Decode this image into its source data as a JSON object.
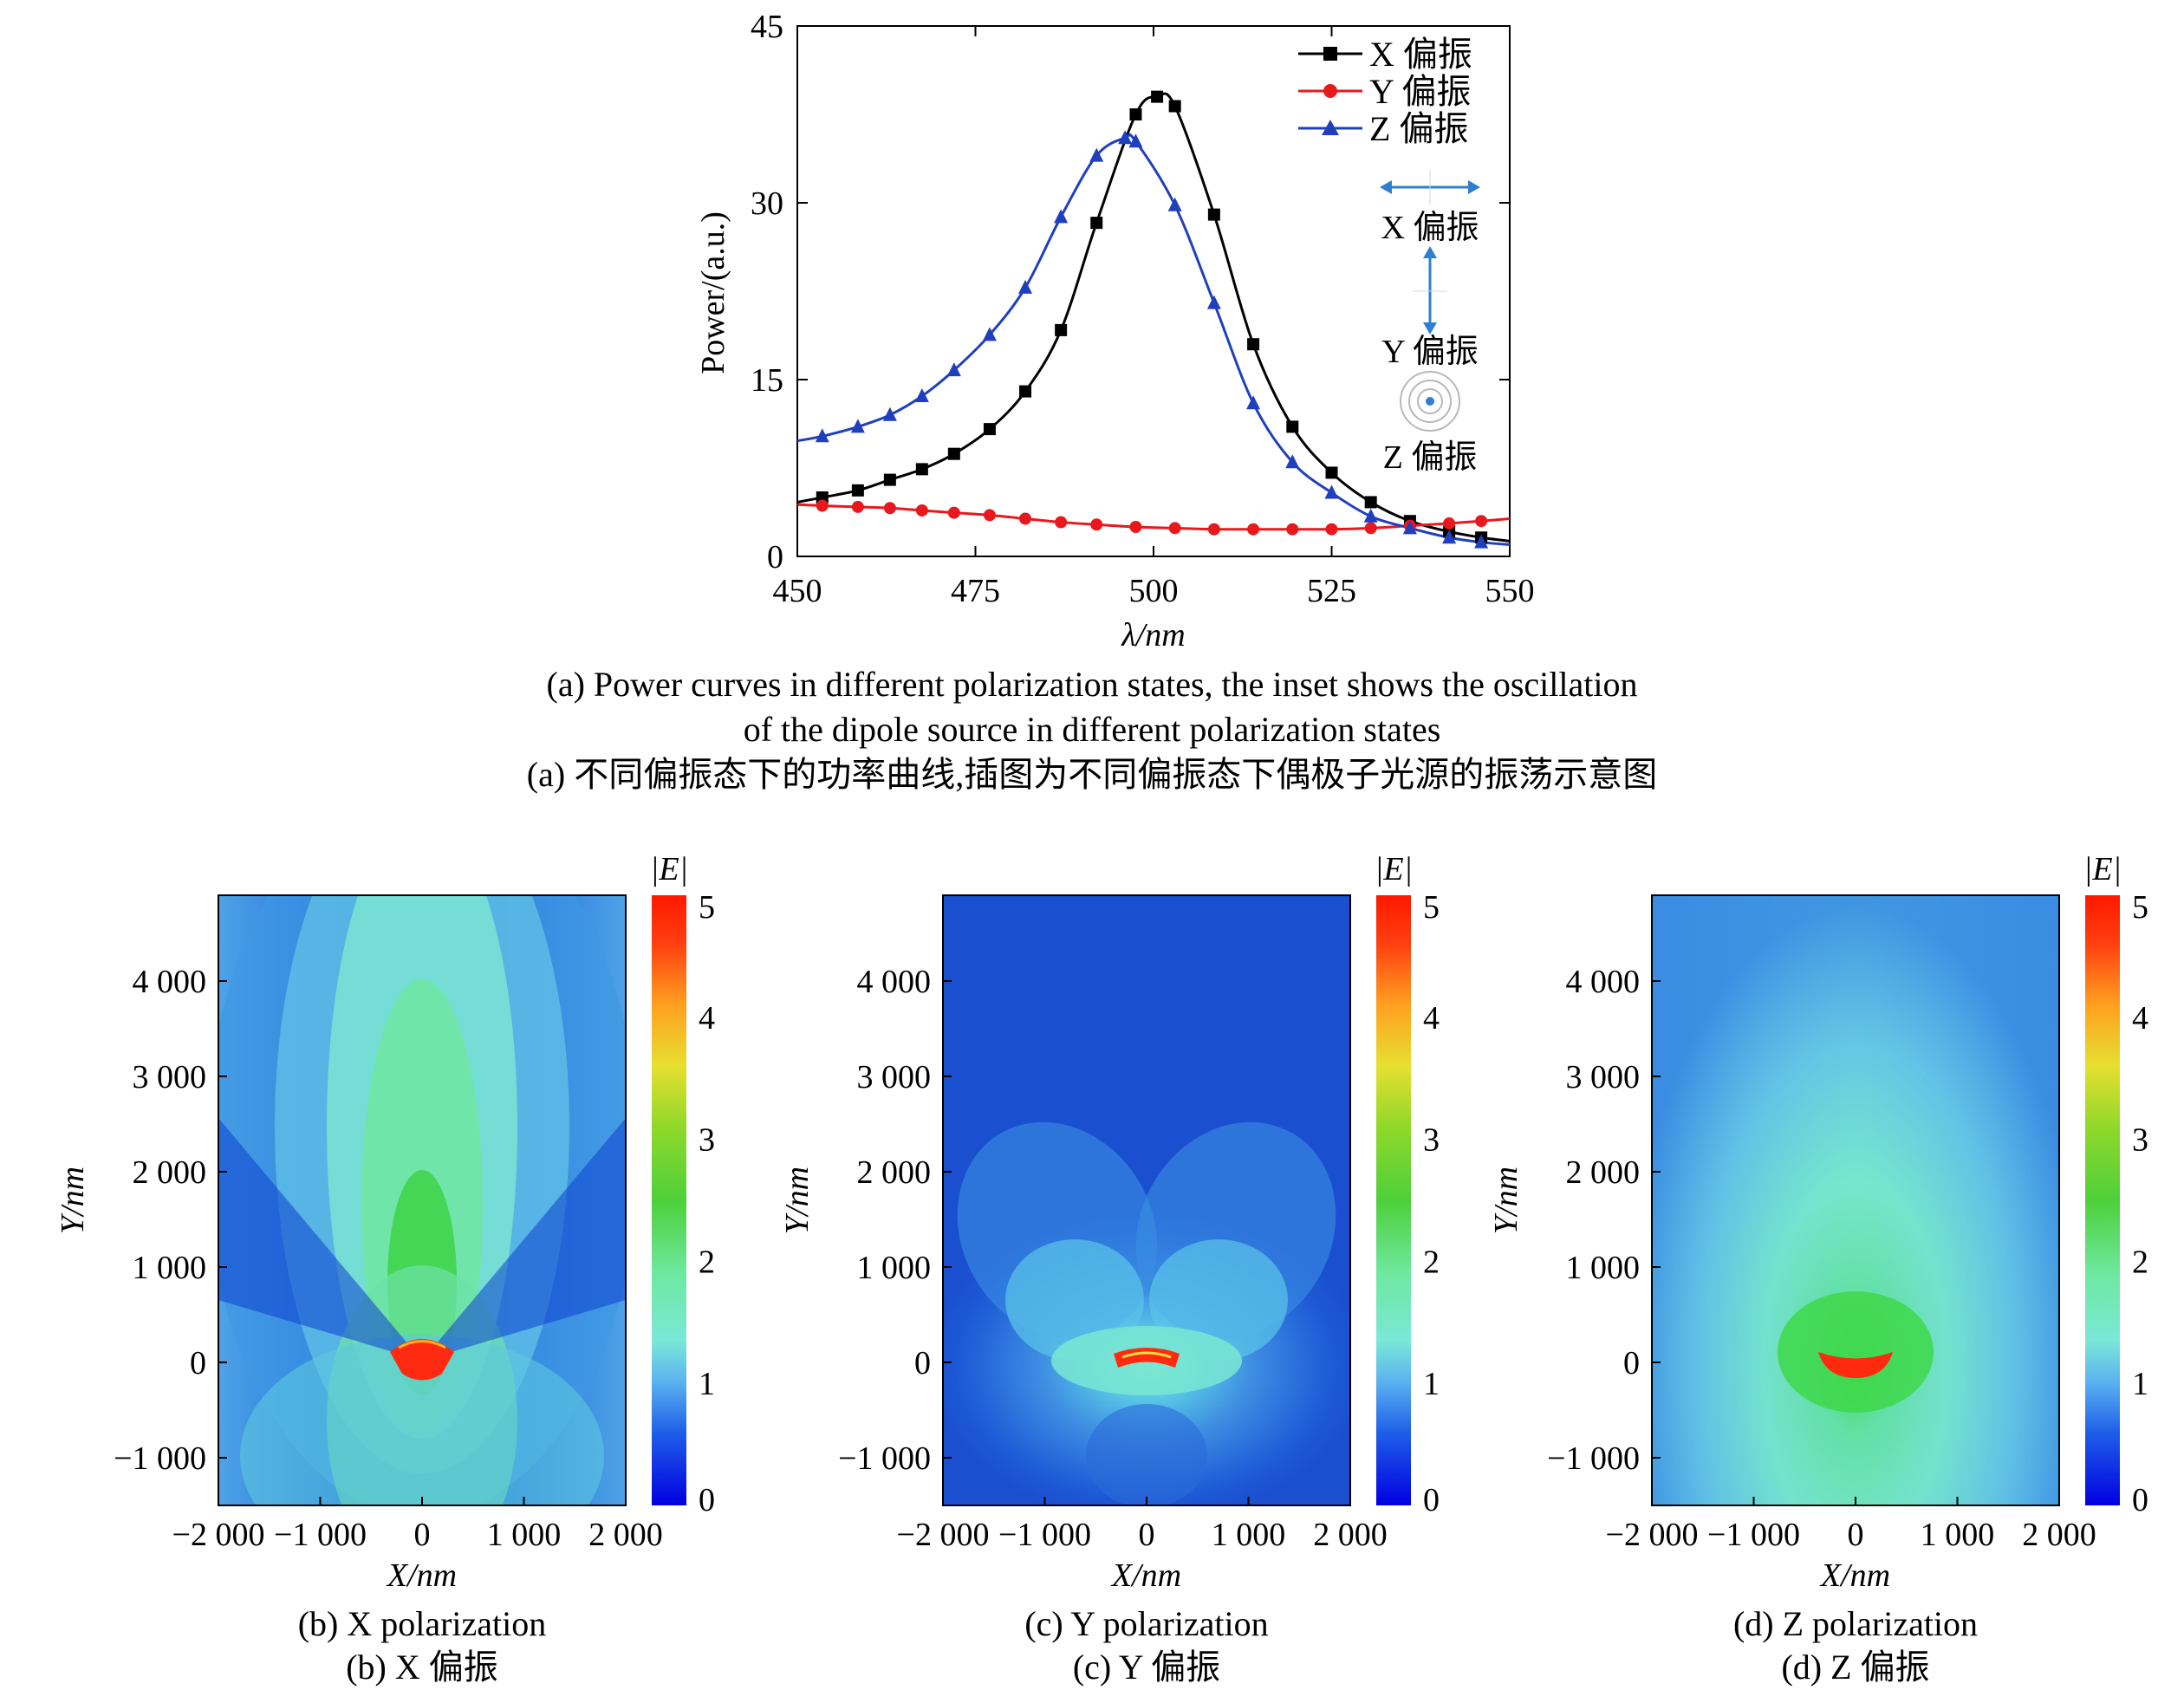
{
  "panel_a": {
    "caption_en_line1": "(a) Power curves in different polarization states, the inset shows the oscillation",
    "caption_en_line2": "of the dipole source in different polarization states",
    "caption_zh": "(a) 不同偏振态下的功率曲线,插图为不同偏振态下偶极子光源的振荡示意图",
    "inset": {
      "x_label": "X 偏振",
      "y_label": "Y 偏振",
      "z_label": "Z 偏振"
    }
  },
  "panel_b": {
    "caption_en": "(b) X polarization",
    "caption_zh": "(b) X 偏振"
  },
  "panel_c": {
    "caption_en": "(c) Y polarization",
    "caption_zh": "(c) Y 偏振"
  },
  "panel_d": {
    "caption_en": "(d) Z polarization",
    "caption_zh": "(d) Z 偏振"
  },
  "colors": {
    "x_series": "#000000",
    "y_series": "#e8191c",
    "z_series": "#1f3fbf",
    "inset_arrow": "#2f7fd0"
  },
  "chart_data": [
    {
      "type": "line",
      "xlabel": "λ/nm",
      "ylabel": "Power/(a.u.)",
      "xlim": [
        450,
        550
      ],
      "ylim": [
        0,
        45
      ],
      "x_ticks": [
        "450",
        "475",
        "500",
        "525",
        "550"
      ],
      "y_ticks": [
        "0",
        "15",
        "30",
        "45"
      ],
      "legend_position": "top-right",
      "grid": false,
      "x": [
        453.5,
        459,
        464,
        469,
        474,
        479.5,
        484.5,
        490,
        494.5,
        499.5,
        502.5,
        505,
        510,
        515,
        520,
        525,
        530,
        535,
        540,
        545,
        550
      ],
      "series": [
        {
          "name": "X 偏振",
          "marker": "square",
          "x": [
            450,
            453.5,
            458.5,
            463,
            467.5,
            472,
            477,
            482,
            487,
            492,
            497.5,
            500.5,
            503,
            508.5,
            514,
            519.5,
            525,
            530.5,
            536,
            541.5,
            546,
            550
          ],
          "values": [
            4.6,
            5.0,
            5.6,
            6.5,
            7.4,
            8.7,
            10.8,
            14.0,
            19.2,
            28.3,
            37.5,
            39.0,
            38.2,
            29.0,
            18.0,
            11.0,
            7.1,
            4.6,
            3.0,
            2.1,
            1.6,
            1.3
          ]
        },
        {
          "name": "Y 偏振",
          "marker": "circle",
          "x": [
            450,
            453.5,
            458.5,
            463,
            467.5,
            472,
            477,
            482,
            487,
            492,
            497.5,
            503,
            508.5,
            514,
            519.5,
            525,
            530.5,
            536,
            541.5,
            546,
            550
          ],
          "values": [
            4.4,
            4.3,
            4.2,
            4.1,
            3.9,
            3.7,
            3.5,
            3.2,
            2.9,
            2.7,
            2.5,
            2.4,
            2.3,
            2.3,
            2.3,
            2.3,
            2.4,
            2.6,
            2.8,
            3.0,
            3.2
          ]
        },
        {
          "name": "Z 偏振",
          "marker": "triangle",
          "x": [
            450,
            453.5,
            458.5,
            463,
            467.5,
            472,
            477,
            482,
            487,
            492,
            496,
            497.5,
            503,
            508.5,
            514,
            519.5,
            525,
            530.5,
            536,
            541.5,
            546,
            550
          ],
          "values": [
            9.8,
            10.2,
            11.0,
            12.0,
            13.6,
            15.8,
            18.8,
            22.8,
            28.8,
            34.0,
            35.5,
            35.2,
            29.8,
            21.5,
            13.0,
            8.0,
            5.4,
            3.4,
            2.4,
            1.6,
            1.2,
            1.0
          ]
        }
      ]
    },
    {
      "type": "heatmap",
      "title": "X polarization",
      "xlabel": "X/nm",
      "ylabel": "Y/nm",
      "xlim": [
        -2000,
        2000
      ],
      "ylim": [
        -1500,
        4900
      ],
      "x_ticks": [
        "−2 000",
        "−1 000",
        "0",
        "1 000",
        "2 000"
      ],
      "y_ticks": [
        "−1 000",
        "0",
        "1 000",
        "2 000",
        "3 000",
        "4 000"
      ],
      "colorbar_label": "|E|",
      "colorbar_ticks": [
        "0",
        "1",
        "2",
        "3",
        "4",
        "5"
      ],
      "colorbar_range": [
        0,
        5
      ]
    },
    {
      "type": "heatmap",
      "title": "Y polarization",
      "xlabel": "X/nm",
      "ylabel": "Y/nm",
      "xlim": [
        -2000,
        2000
      ],
      "ylim": [
        -1500,
        4900
      ],
      "x_ticks": [
        "−2 000",
        "−1 000",
        "0",
        "1 000",
        "2 000"
      ],
      "y_ticks": [
        "−1 000",
        "0",
        "1 000",
        "2 000",
        "3 000",
        "4 000"
      ],
      "colorbar_label": "|E|",
      "colorbar_ticks": [
        "0",
        "1",
        "2",
        "3",
        "4",
        "5"
      ],
      "colorbar_range": [
        0,
        5
      ]
    },
    {
      "type": "heatmap",
      "title": "Z polarization",
      "xlabel": "X/nm",
      "ylabel": "Y/nm",
      "xlim": [
        -2000,
        2000
      ],
      "ylim": [
        -1500,
        4900
      ],
      "x_ticks": [
        "−2 000",
        "−1 000",
        "0",
        "1 000",
        "2 000"
      ],
      "y_ticks": [
        "−1 000",
        "0",
        "1 000",
        "2 000",
        "3 000",
        "4 000"
      ],
      "colorbar_label": "|E|",
      "colorbar_ticks": [
        "0",
        "1",
        "2",
        "3",
        "4",
        "5"
      ],
      "colorbar_range": [
        0,
        5
      ]
    }
  ]
}
